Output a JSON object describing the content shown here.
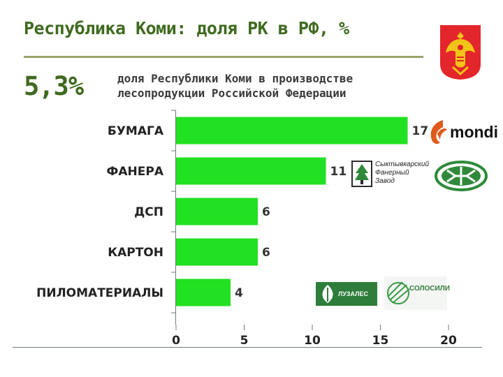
{
  "header": {
    "title": "Республика Коми: доля РК в РФ, %",
    "big_value": "5,3%",
    "description": "доля Республики Коми в производстве лесопродукции Российской Федерации"
  },
  "colors": {
    "bar": "#22e022",
    "title": "#3f6a1f",
    "axis": "#6f7a7a",
    "mondi": "#e05a1e",
    "fanera": "#2e8a3a"
  },
  "logos": {
    "coat_of_arms": "coat-of-arms-icon",
    "mondi": {
      "icon": "mondi-swirl-icon",
      "text": "mondi"
    },
    "syktyvkar_plywood": {
      "icon": "plywood-tree-icon",
      "line1": "Сыктывкарский",
      "line2": "Фанерный",
      "line3": "Завод"
    },
    "fanera_emblem": "fanera-emblem-icon",
    "luzales": {
      "icon": "luzales-leaf-icon",
      "text": "ЛУЗАЛЕС"
    },
    "rolls": {
      "icon": "rolls-icon",
      "text": "СОЛОСИЛИ"
    }
  },
  "chart_data": {
    "type": "bar",
    "orientation": "horizontal",
    "categories": [
      "БУМАГА",
      "ФАНЕРА",
      "ДСП",
      "КАРТОН",
      "ПИЛОМАТЕРИАЛЫ"
    ],
    "values": [
      17,
      11,
      6,
      6,
      4
    ],
    "data_labels": [
      "17",
      "11",
      "6",
      "6",
      "4"
    ],
    "xlim": [
      0,
      20
    ],
    "x_ticks": [
      0,
      5,
      10,
      15,
      20
    ],
    "grid": false,
    "legend": "none"
  }
}
